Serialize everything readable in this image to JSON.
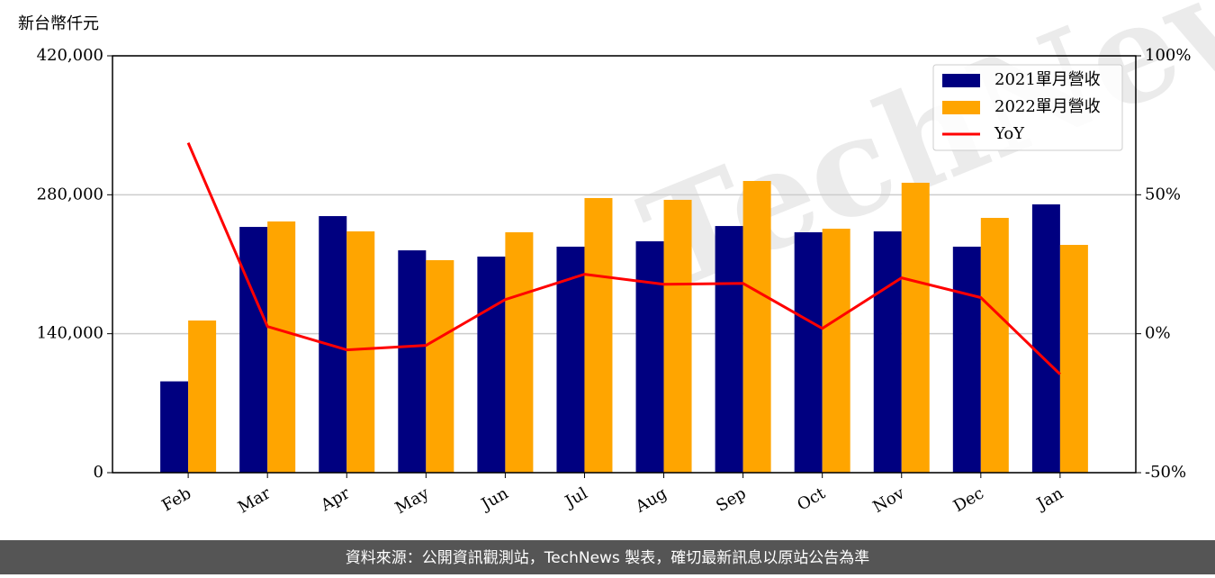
{
  "chart_data": {
    "type": "bar_line",
    "ylabel": "新台幣仟元",
    "watermark": "TechNews",
    "footer": "資料來源：公開資訊觀測站，TechNews 製表，確切最新訊息以原站公告為準",
    "categories": [
      "Feb",
      "Mar",
      "Apr",
      "May",
      "Jun",
      "Jul",
      "Aug",
      "Sep",
      "Oct",
      "Nov",
      "Dec",
      "Jan"
    ],
    "series": [
      {
        "name": "2021單月營收",
        "type": "bar",
        "color": "#000080",
        "values": [
          92000,
          247600,
          258500,
          224000,
          217700,
          227700,
          233100,
          248500,
          242200,
          243100,
          227700,
          270300
        ]
      },
      {
        "name": "2022單月營收",
        "type": "bar",
        "color": "#ffa500",
        "values": [
          153300,
          253100,
          243100,
          214100,
          242200,
          276700,
          274900,
          293900,
          245800,
          292100,
          256700,
          229500
        ]
      },
      {
        "name": "YoY",
        "type": "line",
        "axis": "y2",
        "color": "#ff0000",
        "values": [
          68.7,
          2.6,
          -5.8,
          -4.2,
          12.3,
          21.4,
          17.8,
          18.1,
          1.9,
          20.1,
          13.0,
          -14.6
        ]
      }
    ],
    "ylim": [
      0,
      420000
    ],
    "yticks": [
      {
        "value": 0,
        "label": "0"
      },
      {
        "value": 140000,
        "label": "140,000"
      },
      {
        "value": 280000,
        "label": "280,000"
      },
      {
        "value": 420000,
        "label": "420,000"
      }
    ],
    "y2lim": [
      -50,
      100
    ],
    "y2ticks": [
      {
        "value": -50,
        "label": "-50%"
      },
      {
        "value": 0,
        "label": "0%"
      },
      {
        "value": 50,
        "label": "50%"
      },
      {
        "value": 100,
        "label": "100%"
      }
    ],
    "grid": true,
    "legend": "upper right"
  }
}
